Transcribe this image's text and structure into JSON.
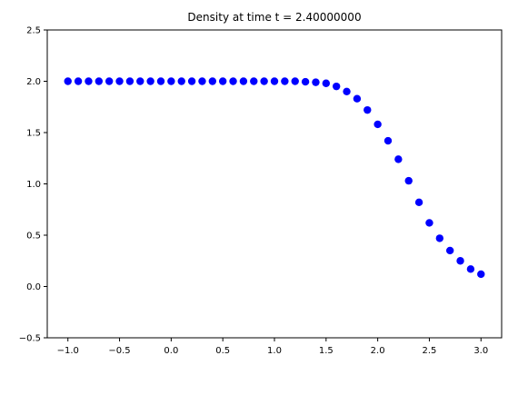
{
  "chart_data": {
    "type": "scatter",
    "title": "Density at time t =     2.40000000",
    "xlabel": "",
    "ylabel": "",
    "xlim": [
      -1.2,
      3.2
    ],
    "ylim": [
      -0.5,
      2.5
    ],
    "xticks": [
      "-1.0",
      "-0.5",
      "0.0",
      "0.5",
      "1.0",
      "1.5",
      "2.0",
      "2.5",
      "3.0"
    ],
    "yticks": [
      "-0.5",
      "0.0",
      "0.5",
      "1.0",
      "1.5",
      "2.0",
      "2.5"
    ],
    "grid": false,
    "marker_color": "#0000ff",
    "series": [
      {
        "x": [
          -1.0,
          -0.9,
          -0.8,
          -0.7,
          -0.6,
          -0.5,
          -0.4,
          -0.3,
          -0.2,
          -0.1,
          0.0,
          0.1,
          0.2,
          0.3,
          0.4,
          0.5,
          0.6,
          0.7,
          0.8,
          0.9,
          1.0,
          1.1,
          1.2,
          1.3,
          1.4,
          1.5,
          1.6,
          1.7,
          1.8,
          1.9,
          2.0,
          2.1,
          2.2,
          2.3,
          2.4,
          2.5,
          2.6,
          2.7,
          2.8,
          2.9,
          3.0
        ],
        "y": [
          2.0,
          2.0,
          2.0,
          2.0,
          2.0,
          2.0,
          2.0,
          2.0,
          2.0,
          2.0,
          2.0,
          2.0,
          2.0,
          2.0,
          2.0,
          2.0,
          2.0,
          2.0,
          2.0,
          2.0,
          2.0,
          2.0,
          2.0,
          1.995,
          1.99,
          1.98,
          1.95,
          1.9,
          1.83,
          1.72,
          1.58,
          1.42,
          1.24,
          1.03,
          0.82,
          0.62,
          0.47,
          0.35,
          0.25,
          0.17,
          0.12
        ]
      }
    ]
  }
}
